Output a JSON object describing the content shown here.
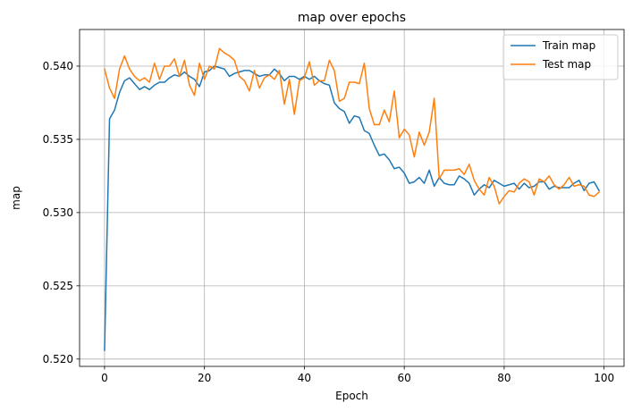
{
  "chart_data": {
    "type": "line",
    "title": "map over epochs",
    "xlabel": "Epoch",
    "ylabel": "map",
    "xlim": [
      -5,
      104
    ],
    "ylim": [
      0.5195,
      0.5425
    ],
    "xticks": [
      0,
      20,
      40,
      60,
      80,
      100
    ],
    "xtick_labels": [
      "0",
      "20",
      "40",
      "60",
      "80",
      "100"
    ],
    "yticks": [
      0.52,
      0.525,
      0.53,
      0.535,
      0.54
    ],
    "ytick_labels": [
      "0.520",
      "0.525",
      "0.530",
      "0.535",
      "0.540"
    ],
    "grid": true,
    "legend_position": "top-right",
    "x": [
      0,
      1,
      2,
      3,
      4,
      5,
      6,
      7,
      8,
      9,
      10,
      11,
      12,
      13,
      14,
      15,
      16,
      17,
      18,
      19,
      20,
      21,
      22,
      23,
      24,
      25,
      26,
      27,
      28,
      29,
      30,
      31,
      32,
      33,
      34,
      35,
      36,
      37,
      38,
      39,
      40,
      41,
      42,
      43,
      44,
      45,
      46,
      47,
      48,
      49,
      50,
      51,
      52,
      53,
      54,
      55,
      56,
      57,
      58,
      59,
      60,
      61,
      62,
      63,
      64,
      65,
      66,
      67,
      68,
      69,
      70,
      71,
      72,
      73,
      74,
      75,
      76,
      77,
      78,
      79,
      80,
      81,
      82,
      83,
      84,
      85,
      86,
      87,
      88,
      89,
      90,
      91,
      92,
      93,
      94,
      95,
      96,
      97,
      98,
      99
    ],
    "series": [
      {
        "name": "Train map",
        "color": "#1f77b4",
        "values": [
          0.5206,
          0.5364,
          0.537,
          0.5382,
          0.539,
          0.5392,
          0.5388,
          0.5384,
          0.5386,
          0.5384,
          0.5387,
          0.5389,
          0.5389,
          0.5392,
          0.5394,
          0.5393,
          0.5396,
          0.5393,
          0.5391,
          0.5386,
          0.5396,
          0.5397,
          0.54,
          0.5399,
          0.5398,
          0.5393,
          0.5395,
          0.5396,
          0.5397,
          0.5397,
          0.5395,
          0.5393,
          0.5394,
          0.5394,
          0.5398,
          0.5395,
          0.539,
          0.5393,
          0.5393,
          0.5391,
          0.5393,
          0.5391,
          0.5393,
          0.539,
          0.5388,
          0.5387,
          0.5375,
          0.5371,
          0.5369,
          0.5361,
          0.5366,
          0.5365,
          0.5356,
          0.5354,
          0.5346,
          0.5339,
          0.534,
          0.5336,
          0.533,
          0.5331,
          0.5327,
          0.532,
          0.5321,
          0.5324,
          0.532,
          0.5329,
          0.5318,
          0.5324,
          0.532,
          0.5319,
          0.5319,
          0.5325,
          0.5323,
          0.532,
          0.5312,
          0.5316,
          0.5319,
          0.5317,
          0.5322,
          0.532,
          0.5318,
          0.5319,
          0.532,
          0.5316,
          0.532,
          0.5317,
          0.5318,
          0.5321,
          0.5321,
          0.5316,
          0.5318,
          0.5317,
          0.5317,
          0.5317,
          0.532,
          0.5322,
          0.5315,
          0.532,
          0.5321,
          0.5315
        ]
      },
      {
        "name": "Test map",
        "color": "#ff7f0e",
        "values": [
          0.5398,
          0.5385,
          0.5378,
          0.5398,
          0.5407,
          0.5398,
          0.5393,
          0.539,
          0.5392,
          0.5389,
          0.5402,
          0.5391,
          0.54,
          0.54,
          0.5405,
          0.5393,
          0.5404,
          0.5387,
          0.538,
          0.5402,
          0.5391,
          0.54,
          0.5398,
          0.5412,
          0.5409,
          0.5407,
          0.5404,
          0.5393,
          0.539,
          0.5383,
          0.5397,
          0.5385,
          0.5392,
          0.5394,
          0.5391,
          0.5397,
          0.5374,
          0.5391,
          0.5367,
          0.539,
          0.5392,
          0.5403,
          0.5387,
          0.539,
          0.539,
          0.5404,
          0.5397,
          0.5376,
          0.5378,
          0.5389,
          0.5389,
          0.5388,
          0.5402,
          0.5371,
          0.536,
          0.536,
          0.537,
          0.5362,
          0.5383,
          0.5351,
          0.5357,
          0.5353,
          0.5338,
          0.5355,
          0.5346,
          0.5355,
          0.5378,
          0.5323,
          0.5329,
          0.5329,
          0.5329,
          0.533,
          0.5326,
          0.5333,
          0.5322,
          0.5316,
          0.5312,
          0.5324,
          0.5318,
          0.5306,
          0.5311,
          0.5315,
          0.5314,
          0.532,
          0.5323,
          0.5321,
          0.5312,
          0.5323,
          0.5321,
          0.5325,
          0.5319,
          0.5316,
          0.5319,
          0.5324,
          0.5318,
          0.5319,
          0.5318,
          0.5312,
          0.5311,
          0.5314
        ]
      }
    ]
  }
}
